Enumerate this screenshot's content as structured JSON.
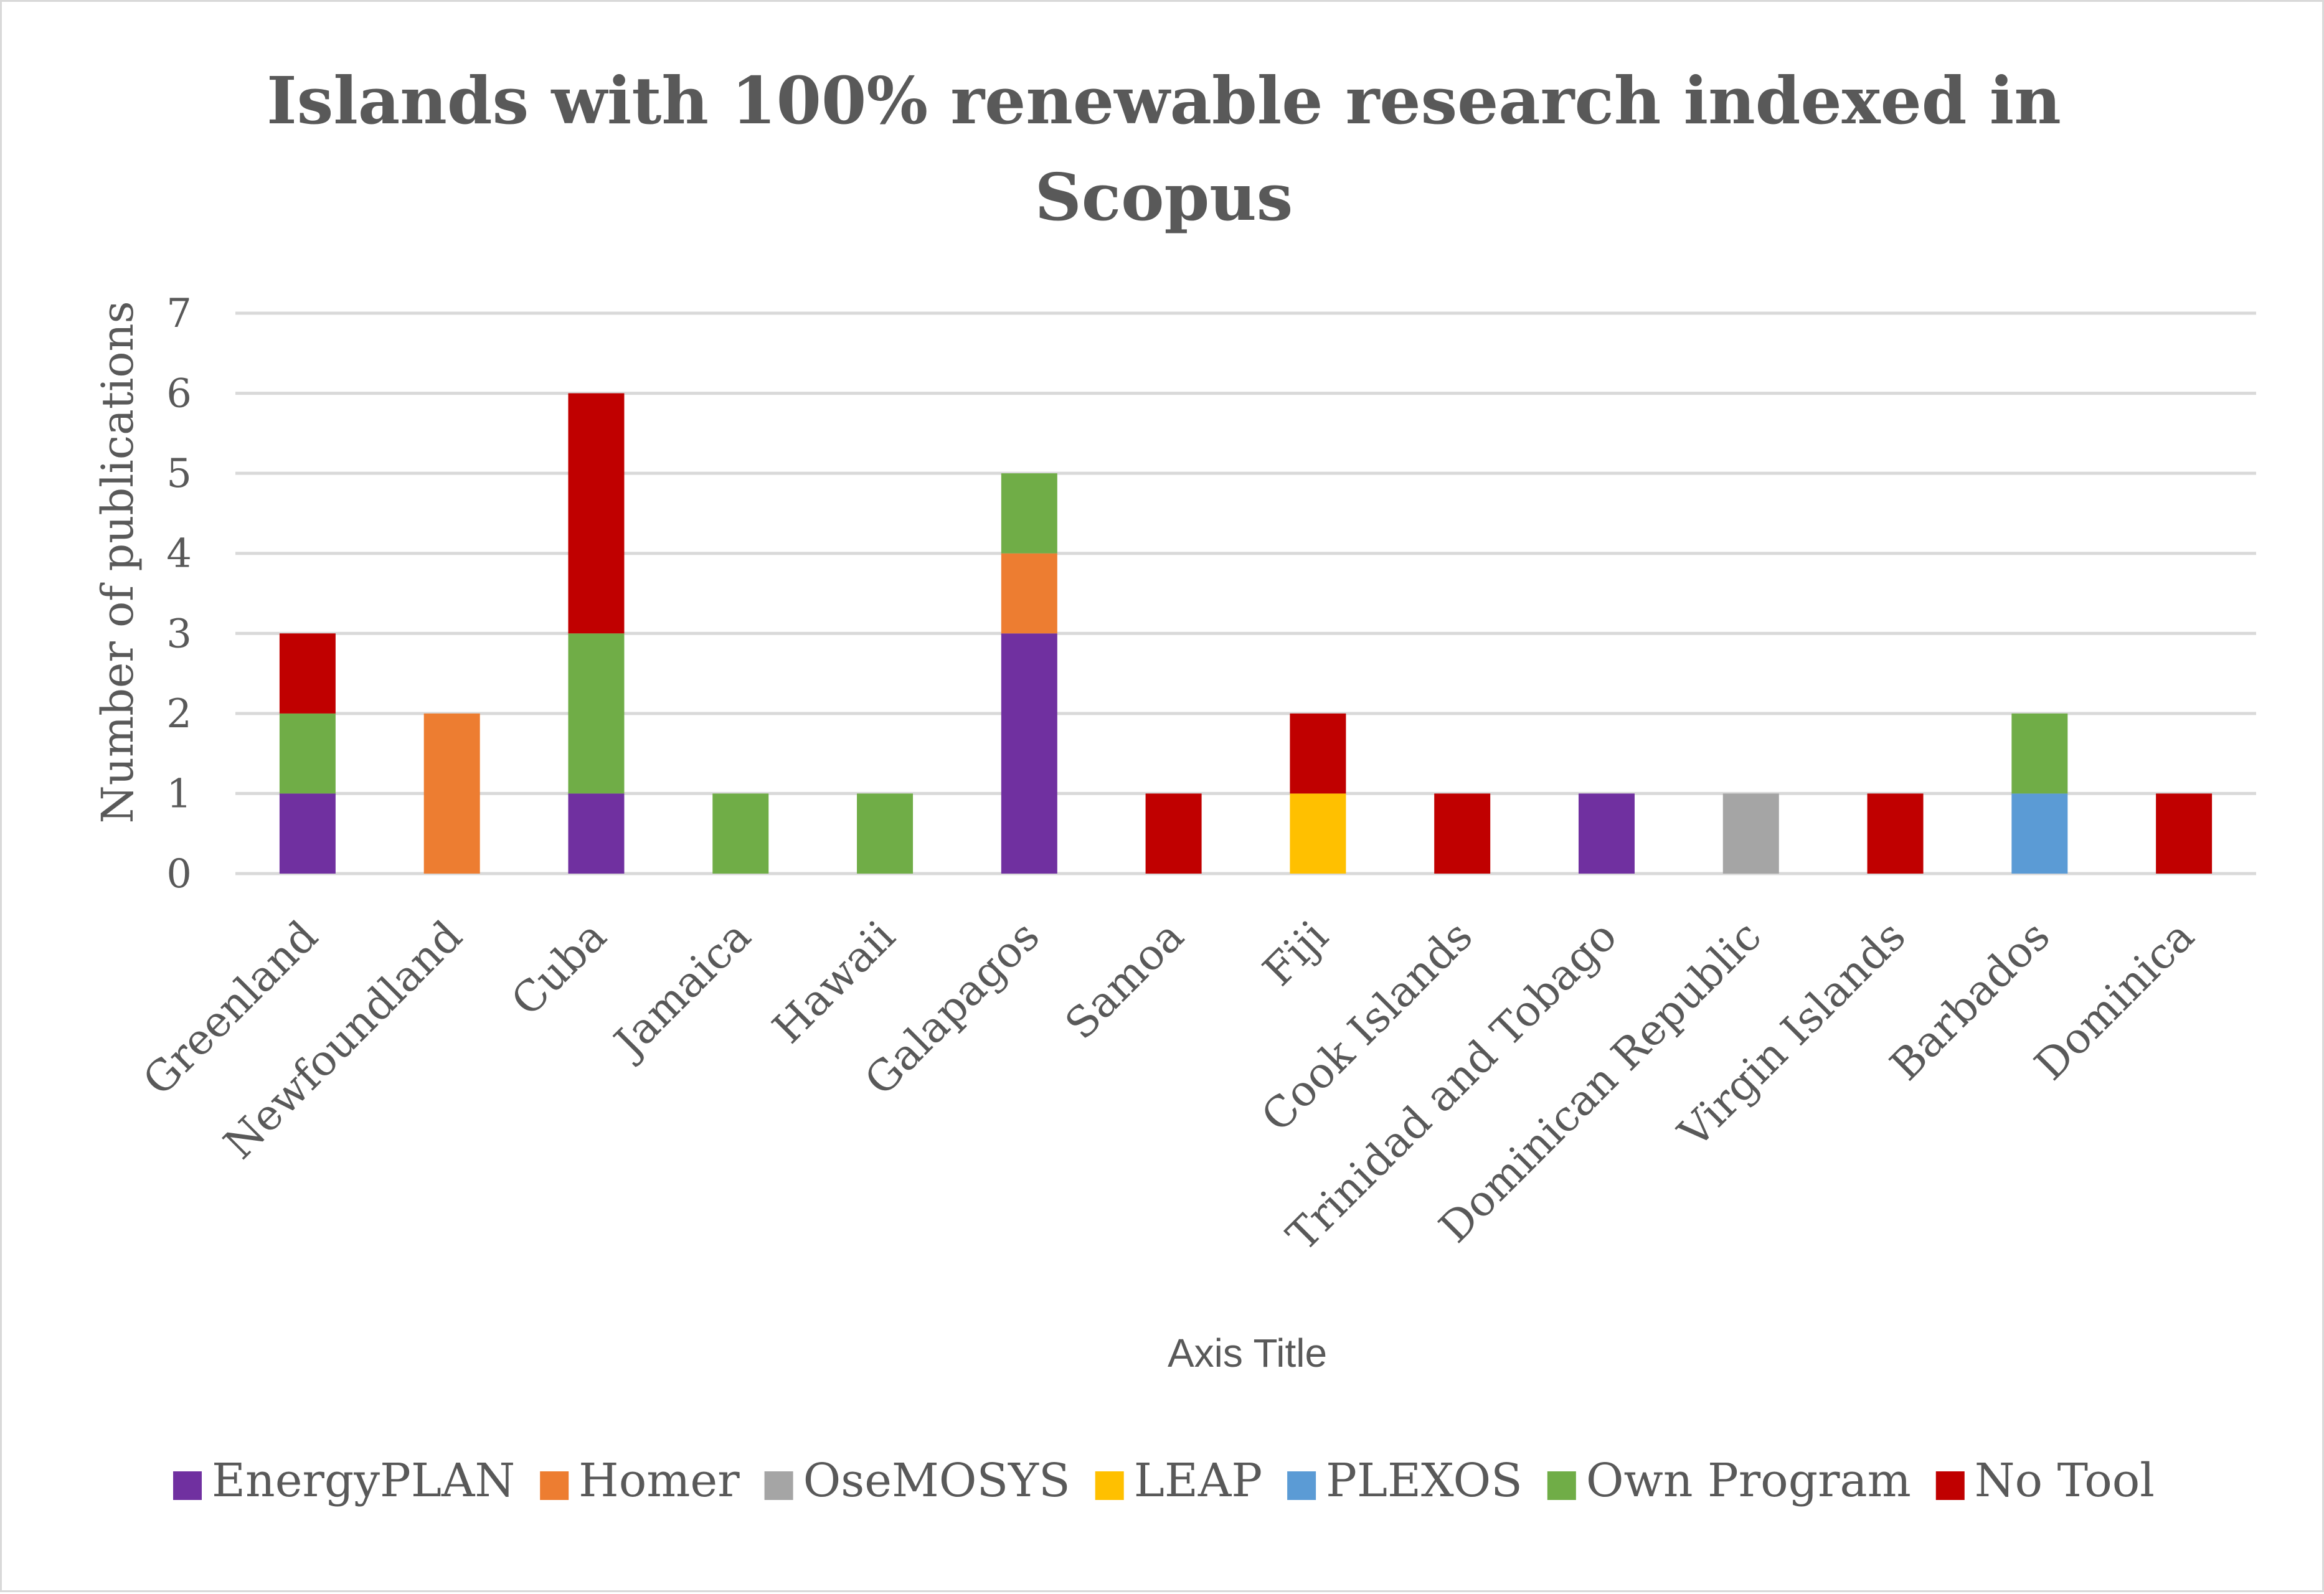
{
  "chart_data": {
    "type": "bar",
    "stacked": true,
    "title": "Islands with 100% renewable research indexed in Scopus",
    "title_lines": [
      "Islands with 100% renewable research indexed in",
      "Scopus"
    ],
    "xlabel": "Axis Title",
    "ylabel": "Number of publications",
    "ylim": [
      0,
      7
    ],
    "yticks": [
      "0",
      "1",
      "2",
      "3",
      "4",
      "5",
      "6",
      "7"
    ],
    "grid": true,
    "legend_position": "bottom",
    "categories": [
      "Greenland",
      "Newfoundland",
      "Cuba",
      "Jamaica",
      "Hawaii",
      "Galapagos",
      "Samoa",
      "Fiji",
      "Cook Islands",
      "Trinidad and Tobago",
      "Dominican Republic",
      "Virgin Islands",
      "Barbados",
      "Dominica"
    ],
    "series": [
      {
        "name": "EnergyPLAN",
        "color": "#7030a0",
        "values": [
          1,
          0,
          1,
          0,
          0,
          3,
          0,
          0,
          0,
          1,
          0,
          0,
          0,
          0
        ]
      },
      {
        "name": "Homer",
        "color": "#ed7d31",
        "values": [
          0,
          2,
          0,
          0,
          0,
          1,
          0,
          0,
          0,
          0,
          0,
          0,
          0,
          0
        ]
      },
      {
        "name": "OseMOSYS",
        "color": "#a5a5a5",
        "values": [
          0,
          0,
          0,
          0,
          0,
          0,
          0,
          0,
          0,
          0,
          1,
          0,
          0,
          0
        ]
      },
      {
        "name": "LEAP",
        "color": "#ffc000",
        "values": [
          0,
          0,
          0,
          0,
          0,
          0,
          0,
          1,
          0,
          0,
          0,
          0,
          0,
          0
        ]
      },
      {
        "name": "PLEXOS",
        "color": "#5b9bd5",
        "values": [
          0,
          0,
          0,
          0,
          0,
          0,
          0,
          0,
          0,
          0,
          0,
          0,
          1,
          0
        ]
      },
      {
        "name": "Own Program",
        "color": "#70ad47",
        "values": [
          1,
          0,
          2,
          1,
          1,
          1,
          0,
          0,
          0,
          0,
          0,
          0,
          1,
          0
        ]
      },
      {
        "name": "No Tool",
        "color": "#c00000",
        "values": [
          1,
          0,
          3,
          0,
          0,
          0,
          1,
          1,
          1,
          0,
          0,
          1,
          0,
          1
        ]
      }
    ]
  }
}
